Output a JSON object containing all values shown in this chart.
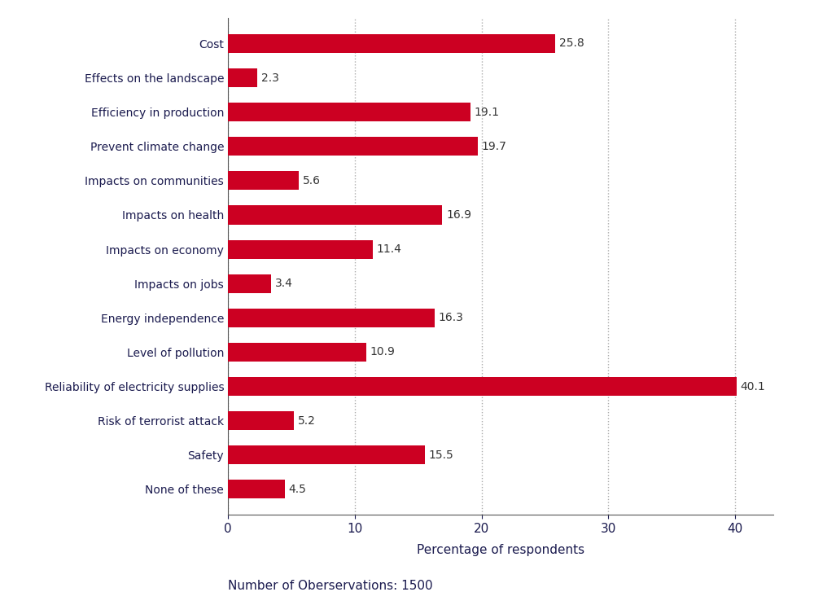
{
  "categories": [
    "None of these",
    "Safety",
    "Risk of terrorist attack",
    "Reliability of electricity supplies",
    "Level of pollution",
    "Energy independence",
    "Impacts on jobs",
    "Impacts on economy",
    "Impacts on health",
    "Impacts on communities",
    "Prevent climate change",
    "Efficiency in production",
    "Effects on the landscape",
    "Cost"
  ],
  "values": [
    4.5,
    15.5,
    5.2,
    40.1,
    10.9,
    16.3,
    3.4,
    11.4,
    16.9,
    5.6,
    19.7,
    19.1,
    2.3,
    25.8
  ],
  "bar_color": "#cc0022",
  "label_color": "#1a1a4e",
  "value_label_color": "#333333",
  "footnote_color": "#1a1a4e",
  "xlabel": "Percentage of respondents",
  "footnote": "Number of Oberservations: 1500",
  "xlim": [
    0,
    43
  ],
  "xticks": [
    0,
    10,
    20,
    30,
    40
  ],
  "grid_color": "#aaaaaa",
  "bar_height": 0.55,
  "figsize": [
    10.0,
    7.27
  ],
  "dpi": 100
}
